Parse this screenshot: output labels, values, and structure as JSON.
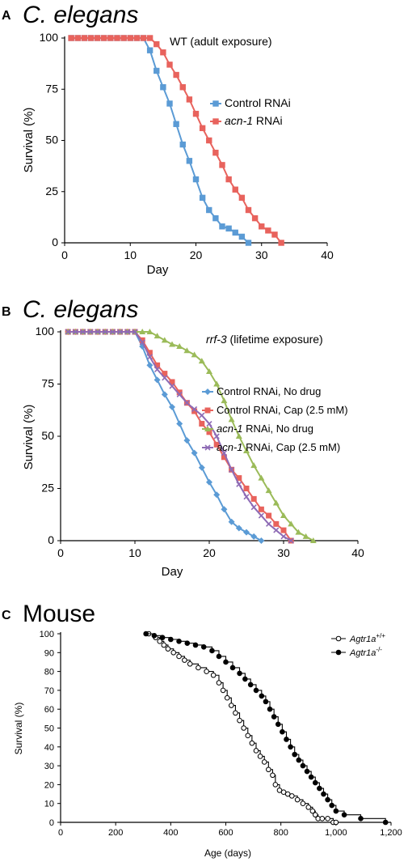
{
  "chart_data": [
    {
      "panel": "A",
      "title": "C. elegans",
      "condition": "WT (adult exposure)",
      "type": "line",
      "xlabel": "Day",
      "ylabel": "Survival (%)",
      "xlim": [
        0,
        40
      ],
      "ylim": [
        0,
        100
      ],
      "xticks": [
        0,
        10,
        20,
        30,
        40
      ],
      "yticks": [
        0,
        25,
        50,
        75,
        100
      ],
      "legend": "middle-right",
      "series": [
        {
          "name": "Control RNAi",
          "italic_part": "",
          "rest": "Control RNAi",
          "color": "#5b9bd5",
          "marker": "square",
          "x": [
            1,
            2,
            3,
            4,
            5,
            6,
            7,
            8,
            9,
            10,
            11,
            12,
            13,
            14,
            15,
            16,
            17,
            18,
            19,
            20,
            21,
            22,
            23,
            24,
            25,
            26,
            27,
            28
          ],
          "y": [
            100,
            100,
            100,
            100,
            100,
            100,
            100,
            100,
            100,
            100,
            100,
            100,
            94,
            84,
            76,
            68,
            58,
            48,
            40,
            31,
            22,
            16,
            12,
            8,
            7,
            5,
            3,
            0
          ]
        },
        {
          "name": "acn-1 RNAi",
          "italic_part": "acn-1",
          "rest": " RNAi",
          "color": "#e8635d",
          "marker": "square",
          "x": [
            1,
            2,
            3,
            4,
            5,
            6,
            7,
            8,
            9,
            10,
            11,
            12,
            13,
            14,
            15,
            16,
            17,
            18,
            19,
            20,
            21,
            22,
            23,
            24,
            25,
            26,
            27,
            28,
            29,
            30,
            31,
            32,
            33
          ],
          "y": [
            100,
            100,
            100,
            100,
            100,
            100,
            100,
            100,
            100,
            100,
            100,
            100,
            100,
            97,
            93,
            87,
            82,
            76,
            70,
            63,
            56,
            50,
            44,
            38,
            31,
            26,
            22,
            16,
            12,
            8,
            6,
            4,
            0
          ]
        }
      ]
    },
    {
      "panel": "B",
      "title": "C. elegans",
      "condition_italic": "rrf-3",
      "condition_rest": " (lifetime exposure)",
      "type": "line",
      "xlabel": "Day",
      "ylabel": "Survival (%)",
      "xlim": [
        0,
        40
      ],
      "ylim": [
        0,
        100
      ],
      "xticks": [
        0,
        10,
        20,
        30,
        40
      ],
      "yticks": [
        0,
        25,
        50,
        75,
        100
      ],
      "legend": "middle-right",
      "series": [
        {
          "name": "Control RNAi, No drug",
          "italic_part": "",
          "rest": "Control RNAi, No drug",
          "color": "#5b9bd5",
          "marker": "diamond",
          "x": [
            1,
            2,
            3,
            4,
            5,
            6,
            7,
            8,
            9,
            10,
            11,
            12,
            13,
            14,
            15,
            16,
            17,
            18,
            19,
            20,
            21,
            22,
            23,
            24,
            25,
            26,
            27
          ],
          "y": [
            100,
            100,
            100,
            100,
            100,
            100,
            100,
            100,
            100,
            100,
            93,
            84,
            77,
            70,
            64,
            56,
            48,
            42,
            35,
            28,
            22,
            15,
            9,
            6,
            4,
            2,
            0
          ]
        },
        {
          "name": "Control RNAi, Cap (2.5 mM)",
          "italic_part": "",
          "rest": "Control RNAi, Cap (2.5 mM)",
          "color": "#e8635d",
          "marker": "square",
          "x": [
            1,
            2,
            3,
            4,
            5,
            6,
            7,
            8,
            9,
            10,
            11,
            12,
            13,
            14,
            15,
            16,
            17,
            18,
            19,
            20,
            21,
            22,
            23,
            24,
            25,
            26,
            27,
            28,
            29,
            30,
            31
          ],
          "y": [
            100,
            100,
            100,
            100,
            100,
            100,
            100,
            100,
            100,
            100,
            96,
            90,
            84,
            80,
            76,
            71,
            66,
            62,
            56,
            52,
            46,
            40,
            34,
            30,
            25,
            20,
            15,
            12,
            8,
            5,
            0
          ]
        },
        {
          "name": "acn-1 RNAi, No drug",
          "italic_part": "acn-1",
          "rest": " RNAi, No drug",
          "color": "#9bbb59",
          "marker": "triangle",
          "x": [
            1,
            2,
            3,
            4,
            5,
            6,
            7,
            8,
            9,
            10,
            11,
            12,
            13,
            14,
            15,
            16,
            17,
            18,
            19,
            20,
            21,
            22,
            23,
            24,
            25,
            26,
            27,
            28,
            29,
            30,
            31,
            32,
            33,
            34
          ],
          "y": [
            100,
            100,
            100,
            100,
            100,
            100,
            100,
            100,
            100,
            100,
            100,
            100,
            98,
            96,
            94,
            93,
            91,
            89,
            86,
            81,
            75,
            67,
            58,
            50,
            43,
            36,
            30,
            24,
            18,
            12,
            8,
            4,
            2,
            0
          ]
        },
        {
          "name": "acn-1 RNAi, Cap (2.5 mM)",
          "italic_part": "acn-1",
          "rest": " RNAi, Cap (2.5 mM)",
          "color": "#8e6bb5",
          "marker": "x",
          "x": [
            1,
            2,
            3,
            4,
            5,
            6,
            7,
            8,
            9,
            10,
            11,
            12,
            13,
            14,
            15,
            16,
            17,
            18,
            19,
            20,
            21,
            22,
            23,
            24,
            25,
            26,
            27,
            28,
            29,
            30,
            31
          ],
          "y": [
            100,
            100,
            100,
            100,
            100,
            100,
            100,
            100,
            100,
            100,
            95,
            88,
            82,
            78,
            74,
            70,
            66,
            63,
            60,
            56,
            50,
            42,
            34,
            27,
            21,
            16,
            12,
            8,
            5,
            2,
            0
          ]
        }
      ]
    },
    {
      "panel": "C",
      "title": "Mouse",
      "type": "step",
      "xlabel": "Age (days)",
      "ylabel": "Survival (%)",
      "xlim": [
        0,
        1200
      ],
      "ylim": [
        0,
        100
      ],
      "xticks": [
        0,
        200,
        400,
        600,
        800,
        1000,
        1200
      ],
      "xtick_labels": [
        "0",
        "200",
        "400",
        "600",
        "800",
        "1,000",
        "1,200"
      ],
      "yticks": [
        0,
        10,
        20,
        30,
        40,
        50,
        60,
        70,
        80,
        90,
        100
      ],
      "legend": "top-right",
      "series": [
        {
          "name": "Agtr1a+/+",
          "italic_part": "Agtr1a",
          "sup": "+/+",
          "color": "#000000",
          "marker": "open-circle",
          "x": [
            320,
            345,
            360,
            375,
            390,
            410,
            430,
            450,
            470,
            500,
            530,
            555,
            575,
            590,
            605,
            620,
            635,
            650,
            665,
            680,
            695,
            710,
            725,
            740,
            755,
            770,
            780,
            795,
            810,
            825,
            840,
            860,
            880,
            900,
            915,
            925,
            935,
            950,
            970,
            990,
            1000
          ],
          "y": [
            100,
            98,
            96,
            94,
            92,
            90,
            88,
            86,
            84,
            82,
            80,
            78,
            74,
            70,
            66,
            62,
            58,
            54,
            50,
            46,
            42,
            38,
            35,
            32,
            28,
            25,
            20,
            17,
            16,
            15,
            14,
            12,
            10,
            8,
            6,
            4,
            2,
            2,
            2,
            0,
            0
          ]
        },
        {
          "name": "Agtr1a-/-",
          "italic_part": "Agtr1a",
          "sup": "-/-",
          "color": "#000000",
          "marker": "filled-circle",
          "x": [
            310,
            340,
            370,
            400,
            430,
            460,
            490,
            520,
            550,
            575,
            600,
            625,
            650,
            670,
            690,
            710,
            730,
            745,
            760,
            775,
            790,
            805,
            820,
            835,
            850,
            865,
            880,
            895,
            910,
            925,
            940,
            955,
            970,
            985,
            1000,
            1030,
            1090,
            1180
          ],
          "y": [
            100,
            99,
            98,
            97,
            96,
            95,
            94,
            93,
            91,
            88,
            85,
            82,
            79,
            76,
            73,
            70,
            67,
            64,
            60,
            56,
            52,
            48,
            44,
            40,
            36,
            33,
            30,
            27,
            24,
            21,
            18,
            15,
            12,
            9,
            6,
            4,
            2,
            0
          ]
        }
      ]
    }
  ]
}
